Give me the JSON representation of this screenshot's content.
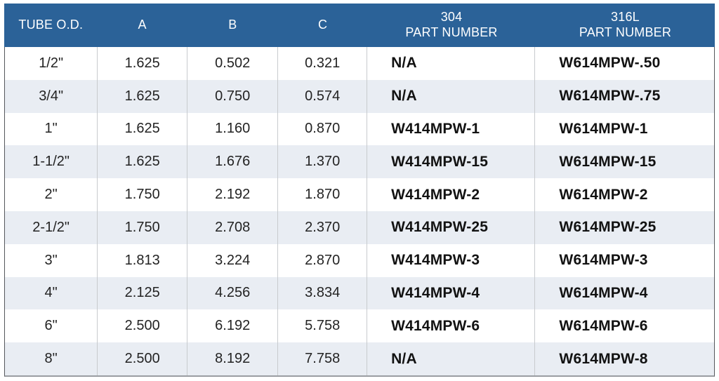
{
  "colors": {
    "header_bg": "#2B6298",
    "header_text": "#FFFFFF",
    "row_alt_bg": "#E9EDF3",
    "body_text": "#232323",
    "column_border": "#C8CBCE"
  },
  "table": {
    "columns": [
      {
        "key": "tube-od",
        "label": "TUBE O.D.",
        "label2": ""
      },
      {
        "key": "a",
        "label": "A",
        "label2": ""
      },
      {
        "key": "b",
        "label": "B",
        "label2": ""
      },
      {
        "key": "c",
        "label": "C",
        "label2": ""
      },
      {
        "key": "pn-304",
        "label": "304",
        "label2": "PART NUMBER"
      },
      {
        "key": "pn-316l",
        "label": "316L",
        "label2": "PART NUMBER"
      }
    ],
    "rows": [
      [
        "1/2\"",
        "1.625",
        "0.502",
        "0.321",
        "N/A",
        "W614MPW-.50"
      ],
      [
        "3/4\"",
        "1.625",
        "0.750",
        "0.574",
        "N/A",
        "W614MPW-.75"
      ],
      [
        "1\"",
        "1.625",
        "1.160",
        "0.870",
        "W414MPW-1",
        "W614MPW-1"
      ],
      [
        "1-1/2\"",
        "1.625",
        "1.676",
        "1.370",
        "W414MPW-15",
        "W614MPW-15"
      ],
      [
        "2\"",
        "1.750",
        "2.192",
        "1.870",
        "W414MPW-2",
        "W614MPW-2"
      ],
      [
        "2-1/2\"",
        "1.750",
        "2.708",
        "2.370",
        "W414MPW-25",
        "W614MPW-25"
      ],
      [
        "3\"",
        "1.813",
        "3.224",
        "2.870",
        "W414MPW-3",
        "W614MPW-3"
      ],
      [
        "4\"",
        "2.125",
        "4.256",
        "3.834",
        "W414MPW-4",
        "W614MPW-4"
      ],
      [
        "6\"",
        "2.500",
        "6.192",
        "5.758",
        "W414MPW-6",
        "W614MPW-6"
      ],
      [
        "8\"",
        "2.500",
        "8.192",
        "7.758",
        "N/A",
        "W614MPW-8"
      ]
    ]
  }
}
